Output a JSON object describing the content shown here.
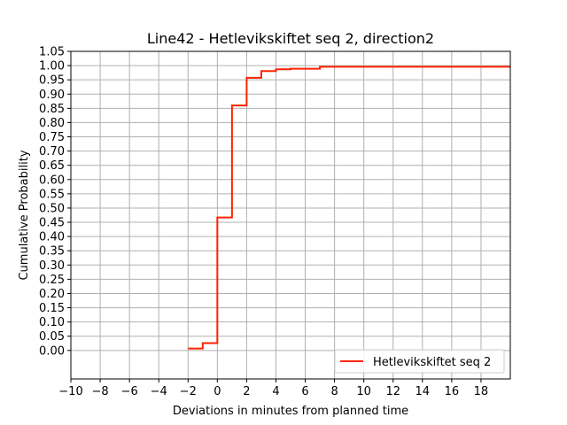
{
  "chart_data": {
    "type": "line",
    "title": "Line42 - Hetlevikskiftet seq 2, direction2",
    "xlabel": "Deviations in minutes from planned time",
    "ylabel": "Cumulative Probability",
    "xlim": [
      -10,
      20
    ],
    "ylim": [
      -0.1,
      1.05
    ],
    "grid": true,
    "legend_position": "lower right",
    "x_ticks": [
      -10,
      -8,
      -6,
      -4,
      -2,
      0,
      2,
      4,
      6,
      8,
      10,
      12,
      14,
      16,
      18
    ],
    "x_tick_labels": [
      "−10",
      "−8",
      "−6",
      "−4",
      "−2",
      "0",
      "2",
      "4",
      "6",
      "8",
      "10",
      "12",
      "14",
      "16",
      "18"
    ],
    "y_ticks": [
      0.0,
      0.05,
      0.1,
      0.15,
      0.2,
      0.25,
      0.3,
      0.35,
      0.4,
      0.45,
      0.5,
      0.55,
      0.6,
      0.65,
      0.7,
      0.75,
      0.8,
      0.85,
      0.9,
      0.95,
      1.0,
      1.05
    ],
    "y_tick_labels": [
      "0.00",
      "0.05",
      "0.10",
      "0.15",
      "0.20",
      "0.25",
      "0.30",
      "0.35",
      "0.40",
      "0.45",
      "0.50",
      "0.55",
      "0.60",
      "0.65",
      "0.70",
      "0.75",
      "0.80",
      "0.85",
      "0.90",
      "0.95",
      "1.00",
      "1.05"
    ],
    "series": [
      {
        "name": "Hetlevikskiftet seq 2",
        "color": "#ff2200",
        "step": "post",
        "x": [
          -2,
          -1,
          0,
          1,
          2,
          3,
          4,
          5,
          6,
          7,
          20
        ],
        "y": [
          0.007,
          0.026,
          0.467,
          0.86,
          0.957,
          0.981,
          0.987,
          0.989,
          0.989,
          0.996,
          0.996
        ]
      }
    ]
  }
}
